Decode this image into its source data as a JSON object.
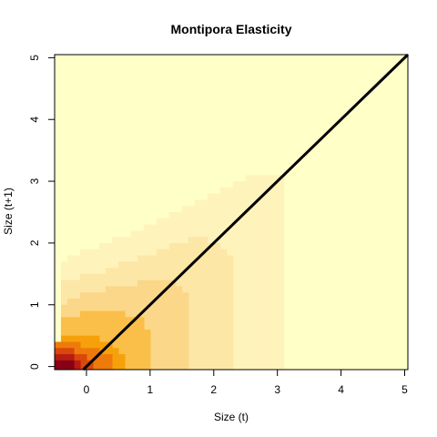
{
  "chart_data": {
    "type": "heatmap",
    "title": "Montipora Elasticity",
    "xlabel": "Size (t)",
    "ylabel": "Size (t+1)",
    "xlim": [
      -0.5,
      5.05
    ],
    "ylim": [
      -0.05,
      5.05
    ],
    "x_ticks": [
      "0",
      "1",
      "2",
      "3",
      "4",
      "5"
    ],
    "y_ticks": [
      "0",
      "1",
      "2",
      "3",
      "4",
      "5"
    ],
    "grid": false,
    "legend": "none",
    "colors": [
      "#FFFFC8",
      "#FFF3BC",
      "#FDE7A7",
      "#FBD78A",
      "#FABF48",
      "#F6A10A",
      "#EE7A0B",
      "#D9480B",
      "#B81C12",
      "#870015"
    ],
    "bands": [
      {
        "level": 1,
        "x": [
          -0.4,
          -0.1,
          0.3,
          0.8,
          1.3,
          1.8,
          2.3,
          2.8,
          3.15
        ],
        "y_upper": [
          1.7,
          1.85,
          2.0,
          2.2,
          2.45,
          2.7,
          2.95,
          3.15,
          3.15
        ]
      },
      {
        "level": 2,
        "x": [
          -0.4,
          -0.1,
          0.3,
          0.8,
          1.3,
          1.8,
          2.1,
          2.3
        ],
        "y_upper": [
          1.35,
          1.45,
          1.55,
          1.75,
          1.95,
          2.1,
          2.0,
          1.8
        ]
      },
      {
        "level": 3,
        "x": [
          -0.4,
          -0.1,
          0.3,
          0.8,
          1.3,
          1.5,
          1.65
        ],
        "y_upper": [
          1.0,
          1.15,
          1.25,
          1.35,
          1.4,
          1.3,
          1.1
        ]
      },
      {
        "level": 4,
        "x": [
          -0.4,
          -0.1,
          0.2,
          0.6,
          0.85,
          1.0
        ],
        "y_upper": [
          0.8,
          0.85,
          0.85,
          0.85,
          0.75,
          0.55
        ]
      },
      {
        "level": 5,
        "x": [
          -0.4,
          -0.1,
          0.2,
          0.45,
          0.6
        ],
        "y_upper": [
          0.5,
          0.55,
          0.45,
          0.3,
          0.15
        ]
      },
      {
        "level": 6,
        "x": [
          -0.45,
          -0.15,
          0.1,
          0.3,
          0.4
        ],
        "y_upper": [
          0.38,
          0.38,
          0.3,
          0.2,
          0.1
        ]
      },
      {
        "level": 7,
        "x": [
          -0.45,
          -0.25,
          -0.1,
          0.1
        ],
        "y_upper": [
          0.28,
          0.28,
          0.2,
          0.1
        ]
      },
      {
        "level": 8,
        "x": [
          -0.45,
          -0.3,
          -0.15
        ],
        "y_upper": [
          0.18,
          0.18,
          0.1
        ]
      },
      {
        "level": 9,
        "x": [
          -0.45,
          -0.35,
          -0.25
        ],
        "y_upper": [
          0.1,
          0.1,
          0.05
        ]
      }
    ],
    "line": {
      "x": [
        -0.05,
        5.05
      ],
      "y": [
        -0.05,
        5.05
      ],
      "color": "#000000"
    }
  }
}
